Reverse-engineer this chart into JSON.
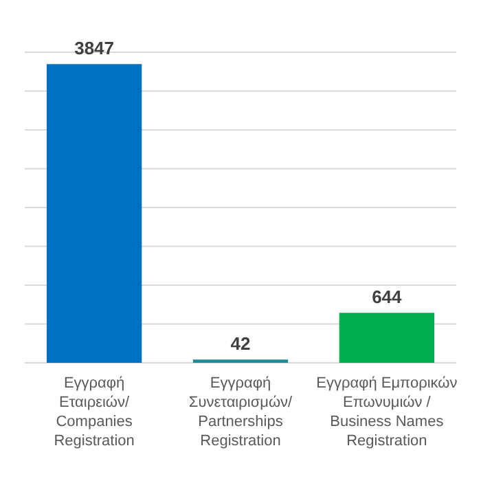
{
  "chart_data": {
    "type": "bar",
    "categories": [
      "Εγγραφή Εταιρειών/ Companies Registration",
      "Εγγραφή Συνεταιρισμών/ Partnerships Registration",
      "Εγγραφή Εμπορικών Επωνυμιών / Business Names Registration"
    ],
    "values": [
      3847,
      42,
      644
    ],
    "colors": [
      "#0070c0",
      "#1f8c96",
      "#00b050"
    ],
    "data_labels": true,
    "ylim": [
      0,
      4000
    ],
    "yticks": [
      {
        "value": 0,
        "label": null
      },
      {
        "value": 500,
        "label": null
      },
      {
        "value": 1000,
        "label": null
      },
      {
        "value": 1500,
        "label": null
      },
      {
        "value": 2000,
        "label": null
      },
      {
        "value": 2500,
        "label": null
      },
      {
        "value": 3000,
        "label": null
      },
      {
        "value": 3500,
        "label": null
      },
      {
        "value": 4000,
        "label": null
      }
    ],
    "grid": true
  }
}
